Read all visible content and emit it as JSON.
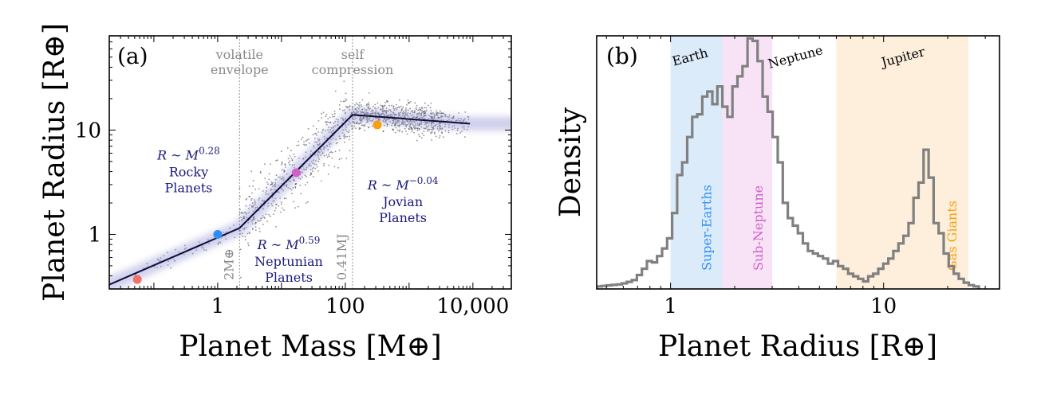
{
  "chart_data": [
    {
      "type": "scatter",
      "panel_label": "(a)",
      "xlabel": "Planet Mass [M⊕]",
      "ylabel": "Planet Radius [R⊕]",
      "xscale": "log",
      "yscale": "log",
      "xlim": [
        0.02,
        40000
      ],
      "ylim": [
        0.3,
        80
      ],
      "xticks": [
        {
          "value": 1,
          "label": "1"
        },
        {
          "value": 100,
          "label": "100"
        },
        {
          "value": 10000,
          "label": "10,000"
        }
      ],
      "yticks": [
        {
          "value": 1,
          "label": "1"
        },
        {
          "value": 10,
          "label": "10"
        }
      ],
      "relation": {
        "name": "",
        "x": [
          0.02,
          2.2,
          2.2,
          130,
          130,
          9000
        ],
        "y": [
          0.33,
          1.15,
          1.15,
          14.0,
          14.0,
          11.5
        ],
        "color": "#0d0d3a",
        "band_color": "#9a9ad8"
      },
      "guide_lines": [
        {
          "x": 2.2,
          "label_top": "volatile",
          "label_bottom": "envelope",
          "side_label": "2M⊕"
        },
        {
          "x": 130,
          "label_top": "self",
          "label_bottom": "compression",
          "side_label": "0.41MJ"
        }
      ],
      "highlight_points": [
        {
          "name": "",
          "x": 0.055,
          "y": 0.37,
          "color": "#f07167"
        },
        {
          "name": "",
          "x": 1.0,
          "y": 1.0,
          "color": "#2f8ef4"
        },
        {
          "name": "",
          "x": 17,
          "y": 3.9,
          "color": "#d15fc8"
        },
        {
          "name": "",
          "x": 318,
          "y": 11.2,
          "color": "#f5a00e"
        }
      ],
      "regime_labels": [
        {
          "formula": "R ~ M",
          "exponent": "0.28",
          "line1": "Rocky",
          "line2": "Planets",
          "x": 0.35,
          "y": 5.2
        },
        {
          "formula": "R ~ M",
          "exponent": "0.59",
          "line1": "Neptunian",
          "line2": "Planets",
          "x": 13,
          "y": 0.72
        },
        {
          "formula": "R ~ M",
          "exponent": "−0.04",
          "line1": "Jovian",
          "line2": "Planets",
          "x": 800,
          "y": 2.7
        }
      ],
      "point_color": "#333333"
    },
    {
      "type": "histogram",
      "panel_label": "(b)",
      "xlabel": "Planet Radius [R⊕]",
      "ylabel": "Density",
      "xscale": "log",
      "xlim": [
        0.45,
        35
      ],
      "ylim": [
        0,
        1.0
      ],
      "xticks": [
        {
          "value": 1,
          "label": "1"
        },
        {
          "value": 10,
          "label": "10"
        }
      ],
      "bin_min": 0.45,
      "bin_max": 28,
      "density": [
        0.01,
        0.012,
        0.014,
        0.016,
        0.018,
        0.022,
        0.028,
        0.035,
        0.055,
        0.08,
        0.11,
        0.105,
        0.13,
        0.16,
        0.2,
        0.3,
        0.45,
        0.5,
        0.6,
        0.68,
        0.69,
        0.76,
        0.78,
        0.73,
        0.8,
        0.72,
        0.68,
        0.8,
        0.84,
        0.88,
        0.99,
        0.98,
        0.9,
        0.76,
        0.7,
        0.6,
        0.5,
        0.34,
        0.28,
        0.25,
        0.22,
        0.18,
        0.15,
        0.14,
        0.13,
        0.12,
        0.1,
        0.11,
        0.09,
        0.08,
        0.06,
        0.05,
        0.04,
        0.03,
        0.05,
        0.06,
        0.08,
        0.1,
        0.12,
        0.15,
        0.18,
        0.21,
        0.26,
        0.36,
        0.42,
        0.55,
        0.44,
        0.26,
        0.22,
        0.14,
        0.09,
        0.06,
        0.04,
        0.025,
        0.015,
        0.01
      ],
      "line_color": "#808080",
      "bands": [
        {
          "from": 1.0,
          "to": 1.75,
          "color": "#dcebfa",
          "text_color": "#2f8ef4",
          "label": "Super-Earths",
          "label_x": 1.55
        },
        {
          "from": 1.75,
          "to": 3.0,
          "color": "#f7e3f5",
          "text_color": "#d15fc8",
          "label": "Sub-Neptune",
          "label_x": 2.7
        },
        {
          "from": 6.0,
          "to": 25,
          "color": "#fdefdb",
          "text_color": "#f5a00e",
          "label": "Gas Giants",
          "label_x": 22
        }
      ],
      "reference_labels": [
        {
          "label": "Earth",
          "x": 1.25,
          "y": 0.9
        },
        {
          "label": "Neptune",
          "x": 3.9,
          "y": 0.9
        },
        {
          "label": "Jupiter",
          "x": 12.5,
          "y": 0.9
        }
      ]
    }
  ]
}
